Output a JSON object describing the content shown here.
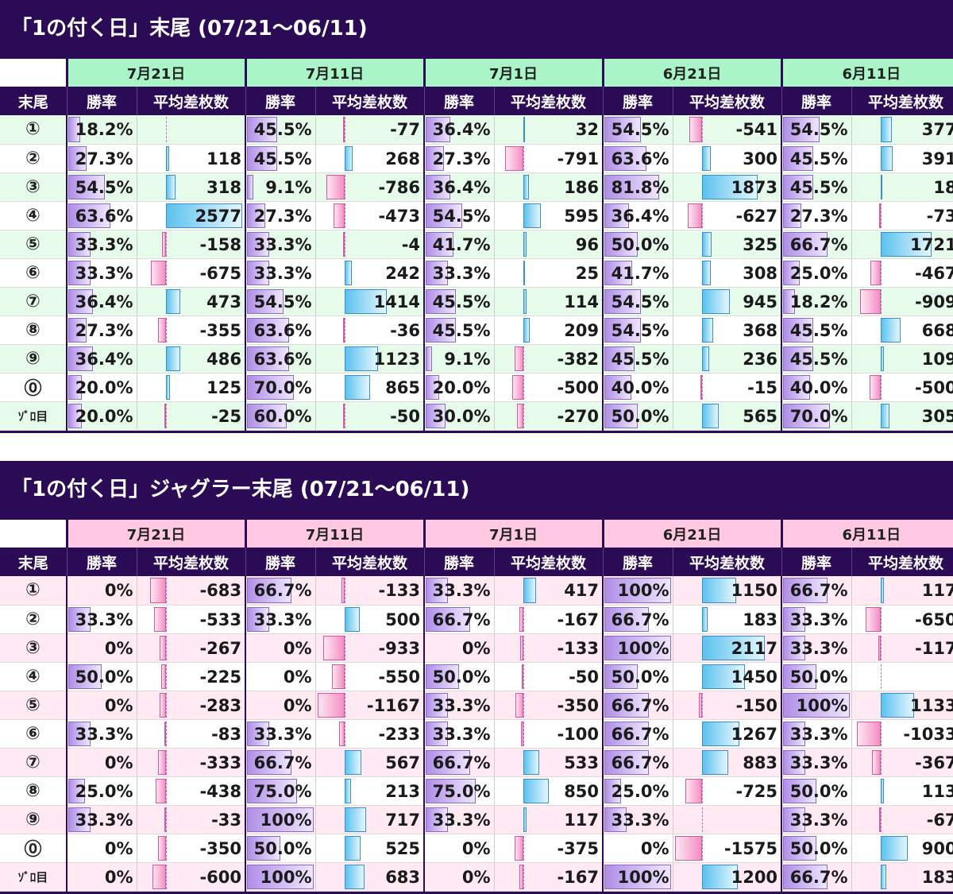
{
  "tables": [
    {
      "title": "「1の付く日」末尾 (07/21～06/11)",
      "theme": {
        "date_bg": "#aaf5c8",
        "row_alt_bg": "#e6fbe9",
        "row_bg": "#ffffff"
      },
      "corner_label": "末尾",
      "col_rate": "勝率",
      "col_diff": "平均差枚数",
      "dates": [
        "7月21日",
        "7月11日",
        "7月1日",
        "6月21日",
        "6月11日"
      ],
      "rows": [
        {
          "label": "①",
          "cells": [
            [
              "18.2%",
              ""
            ],
            [
              "45.5%",
              "-77"
            ],
            [
              "36.4%",
              "32"
            ],
            [
              "54.5%",
              "-541"
            ],
            [
              "54.5%",
              "377"
            ]
          ]
        },
        {
          "label": "②",
          "cells": [
            [
              "27.3%",
              "118"
            ],
            [
              "45.5%",
              "268"
            ],
            [
              "27.3%",
              "-791"
            ],
            [
              "63.6%",
              "300"
            ],
            [
              "45.5%",
              "391"
            ]
          ]
        },
        {
          "label": "③",
          "cells": [
            [
              "54.5%",
              "318"
            ],
            [
              "9.1%",
              "-786"
            ],
            [
              "36.4%",
              "186"
            ],
            [
              "81.8%",
              "1873"
            ],
            [
              "45.5%",
              "18"
            ]
          ]
        },
        {
          "label": "④",
          "cells": [
            [
              "63.6%",
              "2577"
            ],
            [
              "27.3%",
              "-473"
            ],
            [
              "54.5%",
              "595"
            ],
            [
              "36.4%",
              "-627"
            ],
            [
              "27.3%",
              "-73"
            ]
          ]
        },
        {
          "label": "⑤",
          "cells": [
            [
              "33.3%",
              "-158"
            ],
            [
              "33.3%",
              "-4"
            ],
            [
              "41.7%",
              "96"
            ],
            [
              "50.0%",
              "325"
            ],
            [
              "66.7%",
              "1721"
            ]
          ]
        },
        {
          "label": "⑥",
          "cells": [
            [
              "33.3%",
              "-675"
            ],
            [
              "33.3%",
              "242"
            ],
            [
              "33.3%",
              "25"
            ],
            [
              "41.7%",
              "308"
            ],
            [
              "25.0%",
              "-467"
            ]
          ]
        },
        {
          "label": "⑦",
          "cells": [
            [
              "36.4%",
              "473"
            ],
            [
              "54.5%",
              "1414"
            ],
            [
              "45.5%",
              "114"
            ],
            [
              "54.5%",
              "945"
            ],
            [
              "18.2%",
              "-909"
            ]
          ]
        },
        {
          "label": "⑧",
          "cells": [
            [
              "27.3%",
              "-355"
            ],
            [
              "63.6%",
              "-36"
            ],
            [
              "45.5%",
              "209"
            ],
            [
              "54.5%",
              "368"
            ],
            [
              "45.5%",
              "668"
            ]
          ]
        },
        {
          "label": "⑨",
          "cells": [
            [
              "36.4%",
              "486"
            ],
            [
              "63.6%",
              "1123"
            ],
            [
              "9.1%",
              "-382"
            ],
            [
              "45.5%",
              "236"
            ],
            [
              "45.5%",
              "109"
            ]
          ]
        },
        {
          "label": "⓪",
          "cells": [
            [
              "20.0%",
              "125"
            ],
            [
              "70.0%",
              "865"
            ],
            [
              "20.0%",
              "-500"
            ],
            [
              "40.0%",
              "-15"
            ],
            [
              "40.0%",
              "-500"
            ]
          ]
        },
        {
          "label": "ｿﾞﾛ目",
          "zoro": true,
          "cells": [
            [
              "20.0%",
              "-25"
            ],
            [
              "60.0%",
              "-50"
            ],
            [
              "30.0%",
              "-270"
            ],
            [
              "50.0%",
              "565"
            ],
            [
              "70.0%",
              "305"
            ]
          ]
        }
      ]
    },
    {
      "title": "「1の付く日」ジャグラー末尾 (07/21～06/11)",
      "theme": {
        "date_bg": "#ffc9e4",
        "row_alt_bg": "#ffeaf4",
        "row_bg": "#ffffff"
      },
      "corner_label": "末尾",
      "col_rate": "勝率",
      "col_diff": "平均差枚数",
      "dates": [
        "7月21日",
        "7月11日",
        "7月1日",
        "6月21日",
        "6月11日"
      ],
      "rows": [
        {
          "label": "①",
          "cells": [
            [
              "0%",
              "-683"
            ],
            [
              "66.7%",
              "-133"
            ],
            [
              "33.3%",
              "417"
            ],
            [
              "100%",
              "1150"
            ],
            [
              "66.7%",
              "117"
            ]
          ]
        },
        {
          "label": "②",
          "cells": [
            [
              "33.3%",
              "-533"
            ],
            [
              "33.3%",
              "500"
            ],
            [
              "66.7%",
              "-167"
            ],
            [
              "66.7%",
              "183"
            ],
            [
              "33.3%",
              "-650"
            ]
          ]
        },
        {
          "label": "③",
          "cells": [
            [
              "0%",
              "-267"
            ],
            [
              "0%",
              "-933"
            ],
            [
              "0%",
              "-133"
            ],
            [
              "100%",
              "2117"
            ],
            [
              "33.3%",
              "-117"
            ]
          ]
        },
        {
          "label": "④",
          "cells": [
            [
              "50.0%",
              "-225"
            ],
            [
              "0%",
              "-550"
            ],
            [
              "50.0%",
              "-50"
            ],
            [
              "50.0%",
              "1450"
            ],
            [
              "50.0%",
              ""
            ]
          ]
        },
        {
          "label": "⑤",
          "cells": [
            [
              "0%",
              "-283"
            ],
            [
              "0%",
              "-1167"
            ],
            [
              "33.3%",
              "-350"
            ],
            [
              "66.7%",
              "-150"
            ],
            [
              "100%",
              "1133"
            ]
          ]
        },
        {
          "label": "⑥",
          "cells": [
            [
              "33.3%",
              "-83"
            ],
            [
              "33.3%",
              "-233"
            ],
            [
              "33.3%",
              "-100"
            ],
            [
              "66.7%",
              "1267"
            ],
            [
              "33.3%",
              "-1033"
            ]
          ]
        },
        {
          "label": "⑦",
          "cells": [
            [
              "0%",
              "-333"
            ],
            [
              "66.7%",
              "567"
            ],
            [
              "66.7%",
              "533"
            ],
            [
              "66.7%",
              "883"
            ],
            [
              "33.3%",
              "-367"
            ]
          ]
        },
        {
          "label": "⑧",
          "cells": [
            [
              "25.0%",
              "-438"
            ],
            [
              "75.0%",
              "213"
            ],
            [
              "75.0%",
              "850"
            ],
            [
              "25.0%",
              "-725"
            ],
            [
              "50.0%",
              "113"
            ]
          ]
        },
        {
          "label": "⑨",
          "cells": [
            [
              "33.3%",
              "-33"
            ],
            [
              "100%",
              "717"
            ],
            [
              "33.3%",
              "117"
            ],
            [
              "33.3%",
              ""
            ],
            [
              "33.3%",
              "-67"
            ]
          ]
        },
        {
          "label": "⓪",
          "cells": [
            [
              "0%",
              "-350"
            ],
            [
              "50.0%",
              "525"
            ],
            [
              "0%",
              "-375"
            ],
            [
              "0%",
              "-1575"
            ],
            [
              "50.0%",
              "900"
            ]
          ]
        },
        {
          "label": "ｿﾞﾛ目",
          "zoro": true,
          "cells": [
            [
              "0%",
              "-600"
            ],
            [
              "100%",
              "683"
            ],
            [
              "0%",
              "-167"
            ],
            [
              "100%",
              "1200"
            ],
            [
              "66.7%",
              "183"
            ]
          ]
        }
      ]
    }
  ]
}
